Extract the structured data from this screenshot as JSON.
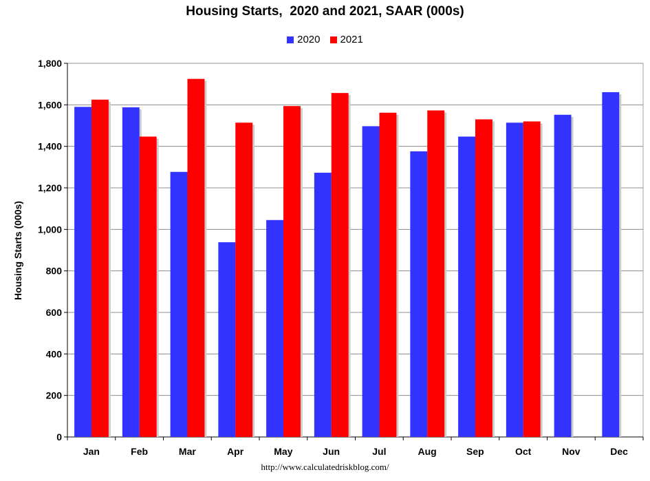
{
  "chart_data": {
    "type": "bar",
    "title": "Housing Starts,  2020 and 2021, SAAR (000s)",
    "ylabel": "Housing Starts (000s)",
    "xlabel": "",
    "categories": [
      "Jan",
      "Feb",
      "Mar",
      "Apr",
      "May",
      "Jun",
      "Jul",
      "Aug",
      "Sep",
      "Oct",
      "Nov",
      "Dec"
    ],
    "series": [
      {
        "name": "2020",
        "color": "#3333ff",
        "values": [
          1590,
          1588,
          1277,
          938,
          1045,
          1273,
          1497,
          1376,
          1447,
          1514,
          1552,
          1661
        ]
      },
      {
        "name": "2021",
        "color": "#ff0000",
        "values": [
          1625,
          1447,
          1725,
          1514,
          1594,
          1657,
          1562,
          1573,
          1530,
          1520,
          null,
          null
        ]
      }
    ],
    "ylim": [
      0,
      1800
    ],
    "yticks": [
      0,
      200,
      400,
      600,
      800,
      1000,
      1200,
      1400,
      1600,
      1800
    ],
    "ytick_labels": [
      "0",
      "200",
      "400",
      "600",
      "800",
      "1,000",
      "1,200",
      "1,400",
      "1,600",
      "1,800"
    ],
    "grid": true,
    "legend_position": "top-center"
  },
  "footer": "http://www.calculatedriskblog.com/"
}
